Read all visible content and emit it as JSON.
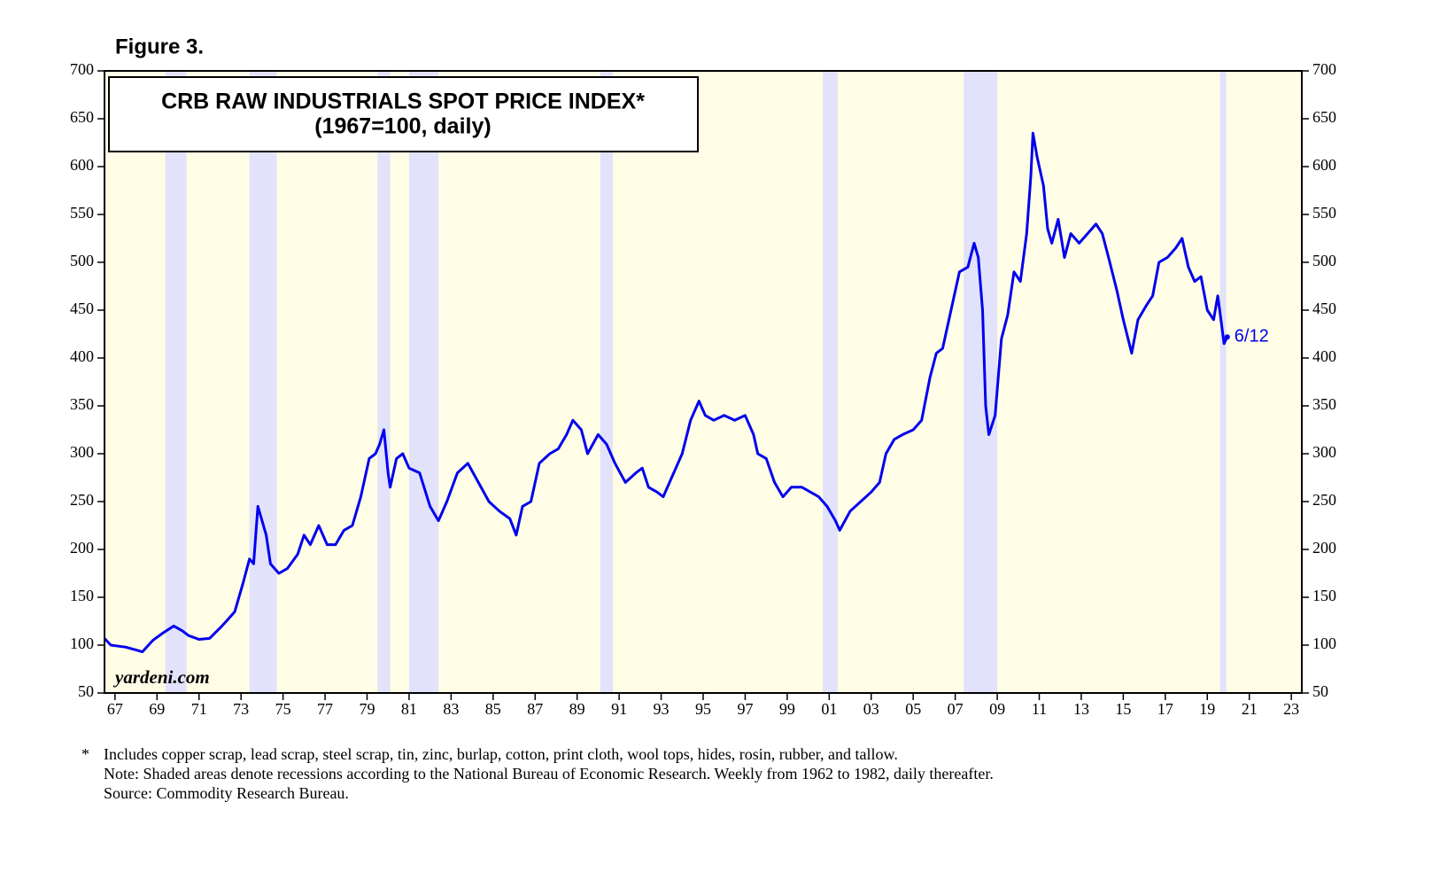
{
  "chart_data": {
    "type": "line",
    "figure_label": "Figure 3.",
    "title": "CRB RAW INDUSTRIALS SPOT PRICE INDEX*",
    "subtitle": "(1967=100, daily)",
    "watermark": "yardeni.com",
    "annotation": "6/12",
    "color": "#0000ee",
    "background": "#fffde6",
    "recession_color": "#e2e2fa",
    "recessions": [
      [
        1969.9,
        1970.9
      ],
      [
        1973.9,
        1975.2
      ],
      [
        1980.0,
        1980.6
      ],
      [
        1981.5,
        1982.9
      ],
      [
        1990.6,
        1991.2
      ],
      [
        2001.2,
        2001.9
      ],
      [
        2007.9,
        2009.5
      ],
      [
        2020.1,
        2020.4
      ]
    ],
    "x": [
      1967.0,
      1967.3,
      1968.0,
      1968.5,
      1968.8,
      1969.3,
      1969.8,
      1970.3,
      1970.7,
      1971.0,
      1971.5,
      1972.0,
      1972.5,
      1972.8,
      1973.2,
      1973.6,
      1973.9,
      1974.1,
      1974.3,
      1974.5,
      1974.7,
      1974.9,
      1975.3,
      1975.7,
      1976.2,
      1976.5,
      1976.8,
      1977.2,
      1977.6,
      1978.0,
      1978.4,
      1978.8,
      1979.2,
      1979.6,
      1979.9,
      1980.1,
      1980.3,
      1980.5,
      1980.6,
      1980.9,
      1981.2,
      1981.5,
      1982.0,
      1982.5,
      1982.9,
      1983.3,
      1983.8,
      1984.3,
      1984.8,
      1985.3,
      1985.8,
      1986.3,
      1986.6,
      1986.9,
      1987.3,
      1987.7,
      1988.2,
      1988.6,
      1989.0,
      1989.3,
      1989.7,
      1990.0,
      1990.5,
      1990.9,
      1991.3,
      1991.8,
      1992.3,
      1992.6,
      1992.9,
      1993.3,
      1993.6,
      1994.0,
      1994.5,
      1994.9,
      1995.3,
      1995.6,
      1996.0,
      1996.5,
      1997.0,
      1997.5,
      1997.9,
      1998.1,
      1998.5,
      1998.9,
      1999.3,
      1999.7,
      2000.2,
      2000.6,
      2001.0,
      2001.4,
      2001.8,
      2002.0,
      2002.5,
      2003.0,
      2003.5,
      2003.9,
      2004.2,
      2004.6,
      2005.0,
      2005.5,
      2005.9,
      2006.3,
      2006.6,
      2006.9,
      2007.3,
      2007.7,
      2008.1,
      2008.4,
      2008.6,
      2008.8,
      2008.95,
      2009.1,
      2009.4,
      2009.7,
      2010.0,
      2010.3,
      2010.6,
      2010.9,
      2011.1,
      2011.2,
      2011.4,
      2011.7,
      2011.9,
      2012.1,
      2012.4,
      2012.7,
      2013.0,
      2013.4,
      2013.8,
      2014.2,
      2014.5,
      2014.8,
      2015.2,
      2015.5,
      2015.9,
      2016.2,
      2016.6,
      2016.9,
      2017.2,
      2017.6,
      2018.0,
      2018.3,
      2018.6,
      2018.9,
      2019.2,
      2019.5,
      2019.8,
      2020.0,
      2020.15,
      2020.3,
      2020.45
    ],
    "values": [
      107,
      100,
      98,
      95,
      93,
      105,
      113,
      120,
      115,
      110,
      106,
      107,
      118,
      125,
      135,
      165,
      190,
      185,
      245,
      230,
      215,
      185,
      175,
      180,
      195,
      215,
      205,
      225,
      205,
      205,
      220,
      225,
      255,
      295,
      300,
      310,
      325,
      280,
      265,
      295,
      300,
      285,
      280,
      245,
      230,
      250,
      280,
      290,
      270,
      250,
      240,
      232,
      215,
      245,
      250,
      290,
      300,
      305,
      320,
      335,
      325,
      300,
      320,
      310,
      290,
      270,
      280,
      285,
      265,
      260,
      255,
      275,
      300,
      335,
      355,
      340,
      335,
      340,
      335,
      340,
      320,
      300,
      295,
      270,
      255,
      265,
      265,
      260,
      255,
      245,
      230,
      220,
      240,
      250,
      260,
      270,
      300,
      315,
      320,
      325,
      335,
      380,
      405,
      410,
      450,
      490,
      495,
      520,
      505,
      450,
      350,
      320,
      340,
      420,
      445,
      490,
      480,
      530,
      590,
      635,
      610,
      580,
      535,
      520,
      545,
      505,
      530,
      520,
      530,
      540,
      530,
      505,
      470,
      440,
      405,
      440,
      455,
      465,
      500,
      505,
      515,
      525,
      495,
      480,
      485,
      450,
      440,
      465,
      440,
      415,
      422
    ],
    "xlim": [
      1967,
      2024
    ],
    "ylim": [
      50,
      700
    ],
    "yticks": [
      50,
      100,
      150,
      200,
      250,
      300,
      350,
      400,
      450,
      500,
      550,
      600,
      650,
      700
    ],
    "xticks": [
      {
        "value": 1967.5,
        "label": "67"
      },
      {
        "value": 1969.5,
        "label": "69"
      },
      {
        "value": 1971.5,
        "label": "71"
      },
      {
        "value": 1973.5,
        "label": "73"
      },
      {
        "value": 1975.5,
        "label": "75"
      },
      {
        "value": 1977.5,
        "label": "77"
      },
      {
        "value": 1979.5,
        "label": "79"
      },
      {
        "value": 1981.5,
        "label": "81"
      },
      {
        "value": 1983.5,
        "label": "83"
      },
      {
        "value": 1985.5,
        "label": "85"
      },
      {
        "value": 1987.5,
        "label": "87"
      },
      {
        "value": 1989.5,
        "label": "89"
      },
      {
        "value": 1991.5,
        "label": "91"
      },
      {
        "value": 1993.5,
        "label": "93"
      },
      {
        "value": 1995.5,
        "label": "95"
      },
      {
        "value": 1997.5,
        "label": "97"
      },
      {
        "value": 1999.5,
        "label": "99"
      },
      {
        "value": 2001.5,
        "label": "01"
      },
      {
        "value": 2003.5,
        "label": "03"
      },
      {
        "value": 2005.5,
        "label": "05"
      },
      {
        "value": 2007.5,
        "label": "07"
      },
      {
        "value": 2009.5,
        "label": "09"
      },
      {
        "value": 2011.5,
        "label": "11"
      },
      {
        "value": 2013.5,
        "label": "13"
      },
      {
        "value": 2015.5,
        "label": "15"
      },
      {
        "value": 2017.5,
        "label": "17"
      },
      {
        "value": 2019.5,
        "label": "19"
      },
      {
        "value": 2021.5,
        "label": "21"
      },
      {
        "value": 2023.5,
        "label": "23"
      }
    ],
    "footnote_marker": "*",
    "footnotes": [
      "Includes copper scrap, lead scrap, steel scrap, tin, zinc, burlap, cotton, print cloth, wool tops, hides, rosin, rubber, and tallow.",
      "Note: Shaded areas denote recessions according to the National Bureau of Economic Research. Weekly from 1962 to 1982, daily thereafter.",
      "Source: Commodity Research Bureau."
    ]
  }
}
